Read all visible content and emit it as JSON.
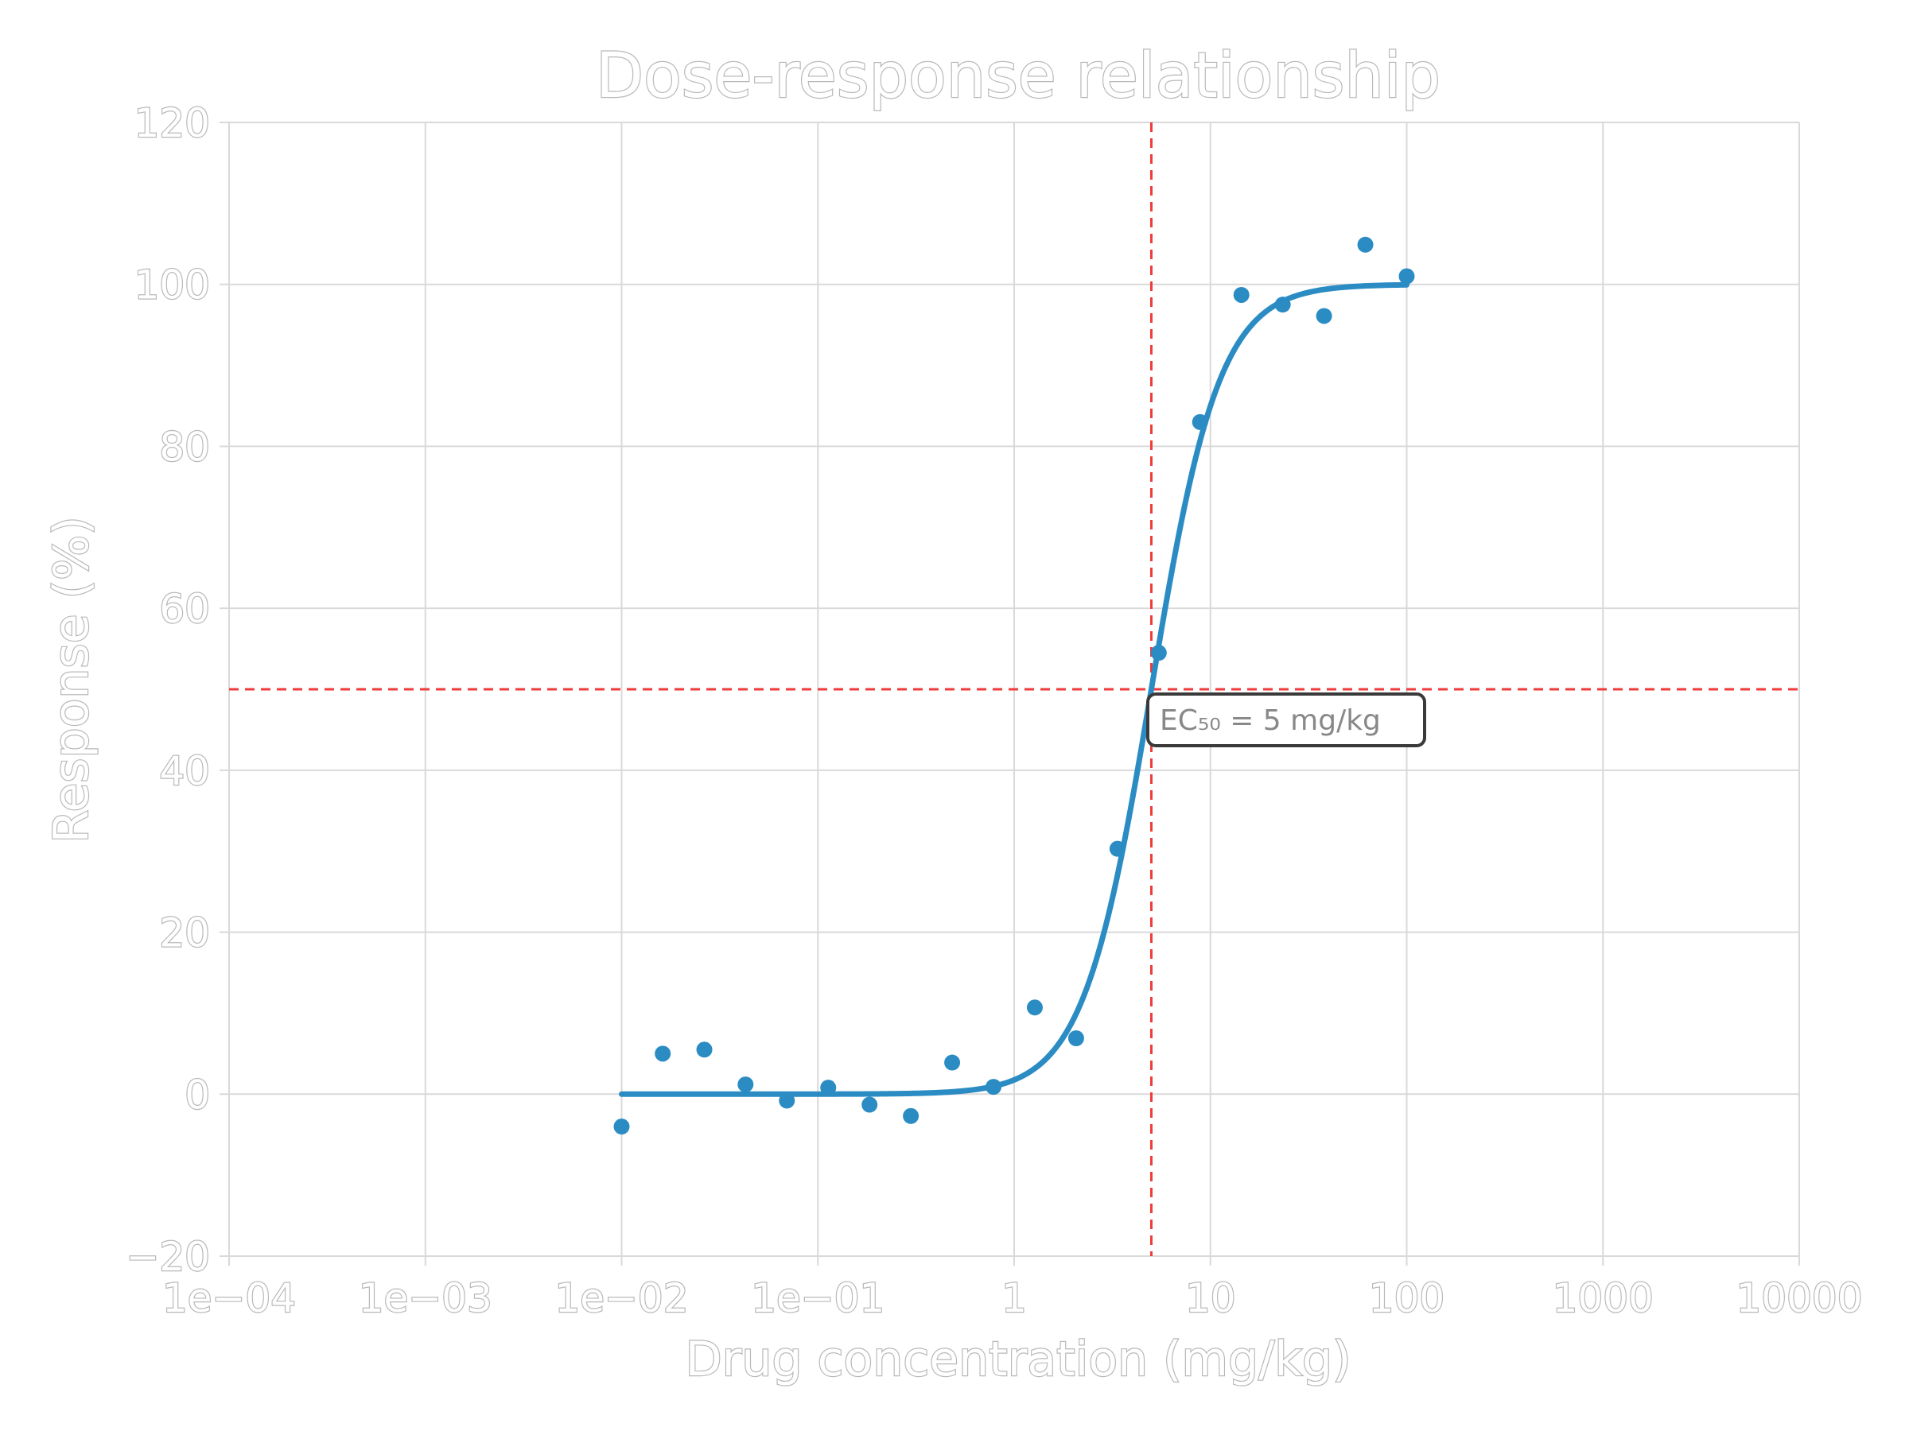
{
  "chart_data": {
    "type": "scatter",
    "title": "Dose-response relationship",
    "xlabel": "Drug concentration (mg/kg)",
    "ylabel": "Response (%)",
    "x_scale": "log",
    "xlim": [
      0.0001,
      10000
    ],
    "ylim": [
      -20,
      120
    ],
    "grid": true,
    "x_ticks": [
      0.0001,
      0.001,
      0.01,
      0.1,
      1,
      10,
      100,
      1000,
      10000
    ],
    "x_tick_labels": [
      "1e−04",
      "1e−03",
      "1e−02",
      "1e−01",
      "1",
      "10",
      "100",
      "1000",
      "10000"
    ],
    "y_ticks": [
      -20,
      0,
      20,
      40,
      60,
      80,
      100,
      120
    ],
    "y_tick_labels": [
      "−20",
      "0",
      "20",
      "40",
      "60",
      "80",
      "100",
      "120"
    ],
    "colors": {
      "series": "#2b8cc4",
      "reference": "#ef3b3b"
    },
    "series": [
      {
        "kind": "points",
        "x": [
          0.01,
          0.0162,
          0.0264,
          0.0428,
          0.0695,
          0.1129,
          0.1833,
          0.2976,
          0.4833,
          0.7848,
          1.2743,
          2.0691,
          3.3598,
          5.4556,
          8.8587,
          14.3845,
          23.3572,
          37.9269,
          61.5848,
          100
        ],
        "y": [
          -4,
          5,
          5.5,
          1.2,
          -0.8,
          0.8,
          -1.3,
          -2.7,
          3.9,
          0.9,
          10.7,
          6.9,
          30.3,
          54.5,
          83,
          98.7,
          97.5,
          96.1,
          104.9,
          101
        ]
      },
      {
        "kind": "fit",
        "model": "hill",
        "ec50": 5,
        "hill": 2.5,
        "bottom": 0,
        "top": 100,
        "x_range": [
          0.01,
          100
        ]
      }
    ],
    "reference_lines": {
      "x": 5,
      "y": 50
    },
    "annotation": {
      "text": "EC₅₀ = 5 mg/kg",
      "x": 5,
      "y": 50
    }
  }
}
